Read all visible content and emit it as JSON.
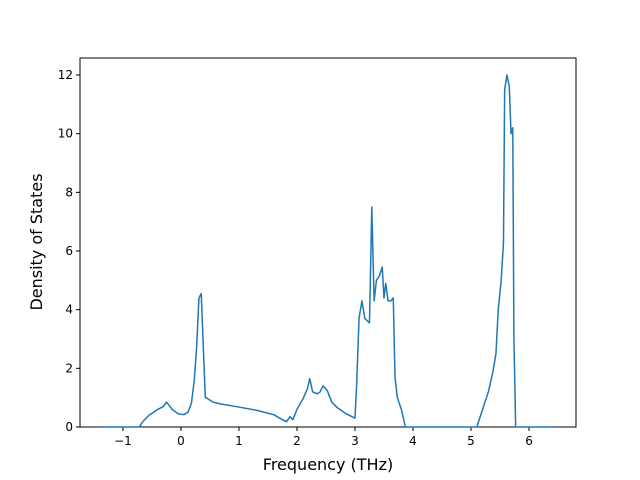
{
  "chart_data": {
    "type": "line",
    "x_label": "Frequency (THz)",
    "y_label": "Density of States",
    "x": [
      -1.35,
      -0.72,
      -0.65,
      -0.55,
      -0.4,
      -0.3,
      -0.25,
      -0.15,
      -0.05,
      0.05,
      0.12,
      0.18,
      0.23,
      0.27,
      0.31,
      0.35,
      0.38,
      0.42,
      0.45,
      0.55,
      0.7,
      1.0,
      1.3,
      1.6,
      1.75,
      1.82,
      1.88,
      1.93,
      2.0,
      2.1,
      2.18,
      2.22,
      2.27,
      2.35,
      2.4,
      2.45,
      2.52,
      2.6,
      2.7,
      2.85,
      3.0,
      3.03,
      3.07,
      3.12,
      3.17,
      3.25,
      3.29,
      3.33,
      3.37,
      3.42,
      3.47,
      3.5,
      3.53,
      3.57,
      3.62,
      3.66,
      3.69,
      3.73,
      3.8,
      3.87,
      5.1,
      5.2,
      5.3,
      5.38,
      5.43,
      5.47,
      5.52,
      5.56,
      5.58,
      5.62,
      5.66,
      5.69,
      5.72,
      5.74,
      5.77,
      6.42
    ],
    "series": [
      {
        "color": "#1f77b4",
        "values": [
          0,
          0,
          0.2,
          0.4,
          0.6,
          0.7,
          0.85,
          0.6,
          0.45,
          0.42,
          0.5,
          0.8,
          1.6,
          2.7,
          4.4,
          4.55,
          3.0,
          1.0,
          0.98,
          0.85,
          0.78,
          0.68,
          0.57,
          0.42,
          0.25,
          0.18,
          0.35,
          0.25,
          0.6,
          0.95,
          1.3,
          1.65,
          1.2,
          1.13,
          1.2,
          1.4,
          1.25,
          0.85,
          0.65,
          0.45,
          0.3,
          1.5,
          3.7,
          4.3,
          3.7,
          3.55,
          7.5,
          4.3,
          5.0,
          5.15,
          5.45,
          4.4,
          4.9,
          4.3,
          4.3,
          4.4,
          1.7,
          1.0,
          0.6,
          0,
          0,
          0.6,
          1.2,
          1.9,
          2.5,
          4.0,
          5.0,
          6.3,
          11.5,
          12.0,
          11.6,
          10.0,
          10.2,
          3.0,
          0,
          0
        ]
      }
    ],
    "xlim": [
      -1.74,
      6.81
    ],
    "ylim": [
      0,
      12.58
    ],
    "xticks": [
      {
        "value": -1,
        "label": "−1"
      },
      0,
      1,
      2,
      3,
      4,
      5,
      6
    ],
    "yticks": [
      0,
      2,
      4,
      6,
      8,
      10,
      12
    ]
  }
}
